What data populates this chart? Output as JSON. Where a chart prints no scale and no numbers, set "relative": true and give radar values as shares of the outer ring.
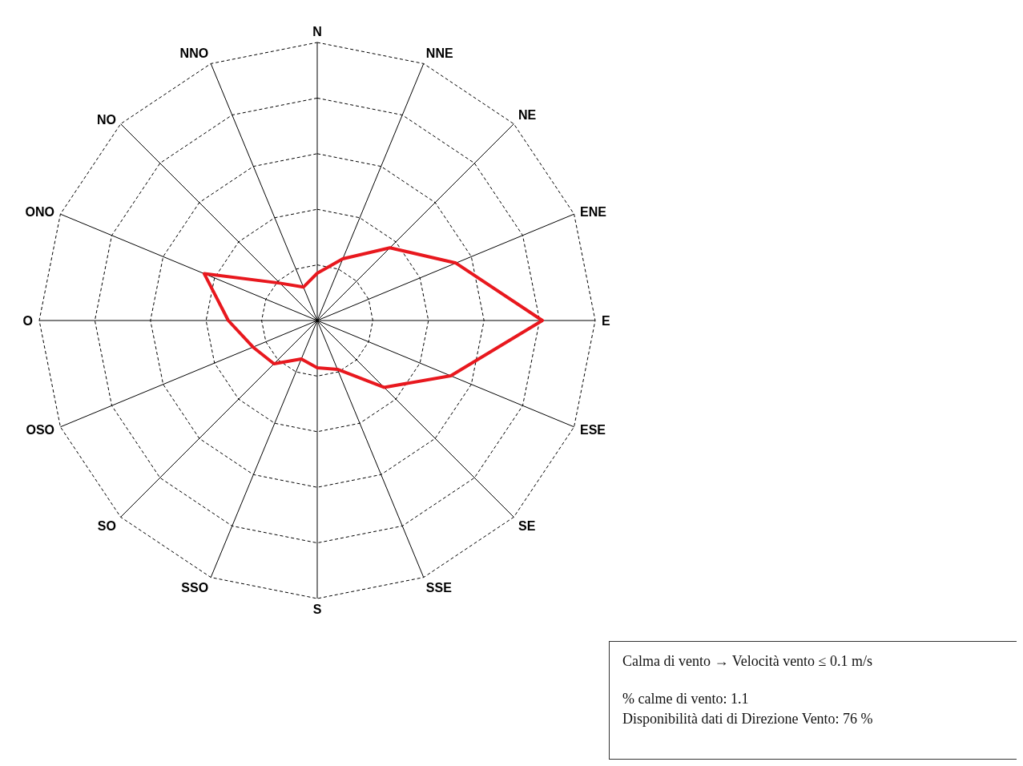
{
  "chart_data": {
    "type": "radar",
    "relative": true,
    "grid": true,
    "legend": false,
    "marker": "none",
    "categories": [
      "N",
      "NNE",
      "NE",
      "ENE",
      "E",
      "ESE",
      "SE",
      "SSE",
      "S",
      "SSO",
      "SO",
      "OSO",
      "O",
      "ONO",
      "NO",
      "NNO"
    ],
    "series": [
      {
        "color": "#e8181e",
        "values": [
          0.17,
          0.24,
          0.37,
          0.54,
          0.81,
          0.52,
          0.34,
          0.19,
          0.17,
          0.15,
          0.22,
          0.25,
          0.32,
          0.44,
          0.19,
          0.13
        ]
      }
    ],
    "annotations": [
      "Calma di vento → Velocità vento ≤ 0.1 m/s",
      "% calme di vento: 1.1",
      "Disponibilità dati di Direzione Vento: 76 %"
    ]
  }
}
